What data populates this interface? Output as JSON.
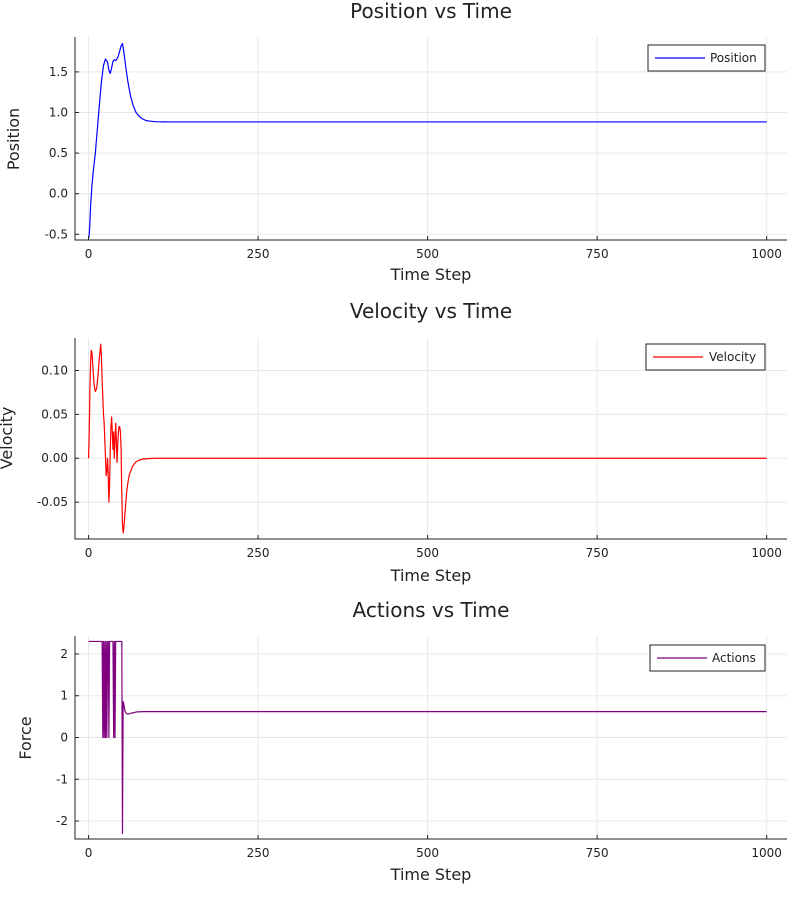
{
  "chart_data": [
    {
      "type": "line",
      "title": "Position vs Time",
      "xlabel": "Time Step",
      "ylabel": "Position",
      "xlim": [
        -20,
        1030
      ],
      "ylim": [
        -0.57,
        1.93
      ],
      "xticks": [
        0,
        250,
        500,
        750,
        1000
      ],
      "xtick_labels": [
        "0",
        "250",
        "500",
        "750",
        "1000"
      ],
      "yticks": [
        -0.5,
        0.0,
        0.5,
        1.0,
        1.5
      ],
      "ytick_labels": [
        "-0.5",
        "0.0",
        "0.5",
        "1.0",
        "1.5"
      ],
      "grid": true,
      "legend": "top-right",
      "series": [
        {
          "name": "Position",
          "color": "#0000ff",
          "x": [
            0,
            1,
            2,
            3,
            5,
            7,
            10,
            13,
            16,
            19,
            22,
            25,
            28,
            30,
            32,
            34,
            36,
            38,
            40,
            42,
            44,
            46,
            48,
            50,
            52,
            55,
            58,
            62,
            66,
            70,
            75,
            80,
            85,
            90,
            95,
            100,
            110,
            120,
            140,
            170,
            200,
            300,
            500,
            700,
            1000
          ],
          "y": [
            -0.55,
            -0.5,
            -0.35,
            -0.15,
            0.1,
            0.28,
            0.5,
            0.8,
            1.1,
            1.38,
            1.58,
            1.66,
            1.62,
            1.52,
            1.48,
            1.55,
            1.63,
            1.65,
            1.64,
            1.66,
            1.7,
            1.76,
            1.82,
            1.85,
            1.75,
            1.55,
            1.38,
            1.2,
            1.08,
            1.0,
            0.95,
            0.92,
            0.9,
            0.895,
            0.89,
            0.887,
            0.885,
            0.884,
            0.884,
            0.884,
            0.884,
            0.884,
            0.884,
            0.884,
            0.884
          ]
        }
      ]
    },
    {
      "type": "line",
      "title": "Velocity vs Time",
      "xlabel": "Time Step",
      "ylabel": "Velocity",
      "xlim": [
        -20,
        1030
      ],
      "ylim": [
        -0.092,
        0.137
      ],
      "xticks": [
        0,
        250,
        500,
        750,
        1000
      ],
      "xtick_labels": [
        "0",
        "250",
        "500",
        "750",
        "1000"
      ],
      "yticks": [
        -0.05,
        0.0,
        0.05,
        0.1
      ],
      "ytick_labels": [
        "-0.05",
        "0.00",
        "0.05",
        "0.10"
      ],
      "grid": true,
      "legend": "top-right",
      "series": [
        {
          "name": "Velocity",
          "color": "#ff0000",
          "x": [
            0,
            1,
            2,
            3,
            4,
            5,
            6,
            8,
            10,
            12,
            14,
            16,
            18,
            19,
            20,
            21,
            22,
            23,
            24,
            25,
            26,
            27,
            28,
            29,
            30,
            31,
            32,
            33,
            34,
            35,
            36,
            37,
            38,
            39,
            40,
            41,
            42,
            43,
            44,
            45,
            46,
            47,
            48,
            49,
            50,
            51,
            52,
            54,
            56,
            58,
            60,
            65,
            70,
            75,
            80,
            90,
            100,
            120,
            150,
            200,
            300,
            500,
            700,
            1000
          ],
          "y": [
            0.0,
            0.03,
            0.08,
            0.11,
            0.123,
            0.12,
            0.108,
            0.085,
            0.076,
            0.08,
            0.095,
            0.115,
            0.13,
            0.115,
            0.09,
            0.07,
            0.05,
            0.04,
            0.02,
            0.0,
            -0.02,
            -0.015,
            0.0,
            -0.02,
            -0.05,
            -0.03,
            0.01,
            0.035,
            0.047,
            0.03,
            0.01,
            0.03,
            0.0,
            0.02,
            0.04,
            0.02,
            -0.005,
            0.015,
            0.03,
            0.036,
            0.036,
            0.03,
            0.01,
            -0.04,
            -0.075,
            -0.085,
            -0.08,
            -0.06,
            -0.04,
            -0.028,
            -0.019,
            -0.009,
            -0.004,
            -0.002,
            -0.001,
            -0.0003,
            0.0,
            0.0,
            0.0,
            0.0,
            0.0,
            0.0,
            0.0,
            0.0
          ]
        }
      ]
    },
    {
      "type": "line",
      "title": "Actions vs Time",
      "xlabel": "Time Step",
      "ylabel": "Force",
      "xlim": [
        -20,
        1030
      ],
      "ylim": [
        -2.43,
        2.43
      ],
      "xticks": [
        0,
        250,
        500,
        750,
        1000
      ],
      "xtick_labels": [
        "0",
        "250",
        "500",
        "750",
        "1000"
      ],
      "yticks": [
        -2,
        -1,
        0,
        1,
        2
      ],
      "ytick_labels": [
        "-2",
        "-1",
        "0",
        "1",
        "2"
      ],
      "grid": true,
      "legend": "top-right",
      "series": [
        {
          "name": "Actions",
          "color": "#800080",
          "x": [
            0,
            19,
            20,
            21,
            22,
            23,
            24,
            25,
            26,
            27,
            28,
            29,
            30,
            31,
            32,
            33,
            34,
            35,
            36,
            37,
            38,
            39,
            40,
            41,
            42,
            43,
            44,
            45,
            46,
            47,
            48,
            49,
            50,
            51,
            52,
            53,
            54,
            56,
            58,
            60,
            65,
            70,
            80,
            100,
            150,
            200,
            300,
            500,
            700,
            1000
          ],
          "y": [
            2.3,
            2.3,
            2.3,
            0.0,
            2.3,
            0.0,
            2.3,
            0.0,
            2.3,
            0.0,
            2.3,
            2.3,
            0.0,
            2.3,
            2.3,
            2.3,
            2.3,
            2.3,
            2.3,
            0.0,
            2.3,
            0.0,
            2.3,
            2.3,
            2.3,
            2.3,
            2.3,
            2.3,
            2.3,
            2.3,
            2.3,
            2.3,
            -2.3,
            0.86,
            0.8,
            0.7,
            0.62,
            0.57,
            0.56,
            0.57,
            0.59,
            0.61,
            0.62,
            0.62,
            0.62,
            0.62,
            0.62,
            0.62,
            0.62,
            0.62
          ]
        }
      ]
    }
  ]
}
